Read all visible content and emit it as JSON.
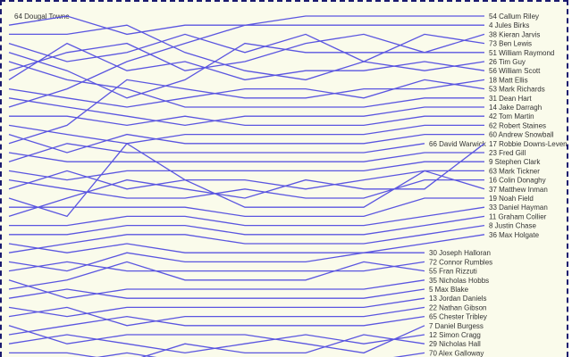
{
  "chart_data": {
    "type": "line",
    "style": "bump chart (rank over stages)",
    "line_color": "#5a55e0",
    "background": "#fafbeb",
    "series": [
      {
        "name": "64 Dougal Towne",
        "ranks": [
          0
        ]
      },
      {
        "name": "54 Callum Riley",
        "ranks": [
          10,
          8,
          5,
          3,
          1,
          0,
          0,
          0,
          0
        ]
      },
      {
        "name": "4 Jules Birks",
        "ranks": [
          1,
          0,
          2,
          1,
          1,
          1,
          1,
          1,
          1
        ]
      },
      {
        "name": "38 Kieran Jarvis",
        "ranks": [
          6,
          4,
          3,
          6,
          5,
          3,
          2,
          4,
          2
        ]
      },
      {
        "name": "73 Ben Lewis",
        "ranks": [
          3,
          5,
          4,
          2,
          4,
          2,
          5,
          2,
          3
        ]
      },
      {
        "name": "51 William Raymond",
        "ranks": [
          4,
          6,
          9,
          7,
          3,
          4,
          4,
          4,
          4
        ]
      },
      {
        "name": "26 Tim Guy",
        "ranks": [
          2,
          2,
          1,
          4,
          6,
          7,
          5,
          6,
          5
        ]
      },
      {
        "name": "56 William Scott",
        "ranks": [
          7,
          3,
          6,
          5,
          7,
          6,
          6,
          5,
          6
        ]
      },
      {
        "name": "18 Matt Ellis",
        "ranks": [
          14,
          12,
          7,
          8,
          9,
          9,
          8,
          8,
          7
        ]
      },
      {
        "name": "53 Mark Richards",
        "ranks": [
          8,
          9,
          10,
          9,
          8,
          8,
          9,
          7,
          8
        ]
      },
      {
        "name": "31 Dean Hart",
        "ranks": [
          5,
          7,
          8,
          10,
          10,
          10,
          10,
          9,
          9
        ]
      },
      {
        "name": "14 Jake Darragh",
        "ranks": [
          9,
          10,
          11,
          12,
          11,
          11,
          11,
          10,
          10
        ]
      },
      {
        "name": "42 Tom Martin",
        "ranks": [
          11,
          11,
          12,
          11,
          12,
          12,
          12,
          11,
          11
        ]
      },
      {
        "name": "62 Robert Staines",
        "ranks": [
          12,
          13,
          14,
          13,
          13,
          13,
          13,
          12,
          12
        ]
      },
      {
        "name": "60 Andrew Snowball",
        "ranks": [
          13,
          15,
          13,
          14,
          14,
          14,
          14,
          13,
          13
        ]
      },
      {
        "name": "66 David Warwick",
        "ranks": [
          16,
          14,
          15,
          15,
          15,
          15,
          15,
          14
        ]
      },
      {
        "name": "17 Robbie Downs-Leven",
        "ranks": [
          22,
          20,
          18,
          19,
          20,
          18,
          19,
          19,
          14
        ]
      },
      {
        "name": "23 Fred Gill",
        "ranks": [
          15,
          16,
          16,
          16,
          16,
          16,
          16,
          15,
          15
        ]
      },
      {
        "name": "9 Stephen Clark",
        "ranks": [
          17,
          18,
          17,
          17,
          17,
          17,
          17,
          16,
          16
        ]
      },
      {
        "name": "63 Mark Tickner",
        "ranks": [
          19,
          17,
          19,
          18,
          18,
          19,
          18,
          17,
          17
        ]
      },
      {
        "name": "16 Colin Donaghy",
        "ranks": [
          18,
          19,
          20,
          20,
          19,
          20,
          20,
          18,
          18
        ]
      },
      {
        "name": "37 Matthew Inman",
        "ranks": [
          20,
          22,
          14,
          18,
          21,
          21,
          21,
          17,
          19
        ]
      },
      {
        "name": "19 Noah Field",
        "ranks": [
          21,
          21,
          21,
          21,
          22,
          22,
          22,
          20,
          20
        ]
      },
      {
        "name": "33 Daniel Hayman",
        "ranks": [
          23,
          23,
          22,
          22,
          23,
          23,
          23,
          22,
          21
        ]
      },
      {
        "name": "11 Graham Collier",
        "ranks": [
          24,
          24,
          23,
          23,
          24,
          24,
          24,
          23,
          22
        ]
      },
      {
        "name": "8 Justin Chase",
        "ranks": [
          26,
          25,
          24,
          24,
          25,
          25,
          25,
          24,
          23
        ]
      },
      {
        "name": "36 Max Holgate",
        "ranks": [
          25,
          26,
          25,
          26,
          26,
          26,
          26,
          25,
          24
        ]
      },
      {
        "name": "30 Joseph Halloran",
        "ranks": [
          27,
          28,
          26,
          27,
          27,
          27,
          26,
          26
        ]
      },
      {
        "name": "72 Connor Rumbles",
        "ranks": [
          28,
          27,
          28,
          28,
          28,
          28,
          28,
          27
        ]
      },
      {
        "name": "55 Fran Rizzuti",
        "ranks": [
          30,
          29,
          27,
          29,
          29,
          29,
          27,
          28
        ]
      },
      {
        "name": "35 Nicholas Hobbs",
        "ranks": [
          29,
          31,
          30,
          30,
          30,
          30,
          30,
          29
        ]
      },
      {
        "name": "5 Max Blake",
        "ranks": [
          31,
          30,
          31,
          31,
          31,
          31,
          31,
          30
        ]
      },
      {
        "name": "13 Jordan Daniels",
        "ranks": [
          32,
          33,
          32,
          32,
          32,
          32,
          32,
          31
        ]
      },
      {
        "name": "22 Nathan Gibson",
        "ranks": [
          33,
          32,
          34,
          33,
          33,
          33,
          33,
          32
        ]
      },
      {
        "name": "65 Chester Tribley",
        "ranks": [
          35,
          34,
          33,
          34,
          34,
          34,
          34,
          33
        ]
      },
      {
        "name": "7 Daniel Burgess",
        "ranks": [
          34,
          36,
          35,
          35,
          35,
          36,
          37,
          34
        ]
      },
      {
        "name": "12 Simon Cragg",
        "ranks": [
          36,
          35,
          36,
          37,
          36,
          35,
          36,
          35
        ]
      },
      {
        "name": "29 Nicholas Hall",
        "ranks": [
          37,
          37,
          38,
          36,
          37,
          37,
          35,
          36
        ]
      },
      {
        "name": "70 Alex Galloway",
        "ranks": [
          38,
          38,
          37,
          38,
          38,
          38,
          38,
          37
        ]
      }
    ]
  }
}
